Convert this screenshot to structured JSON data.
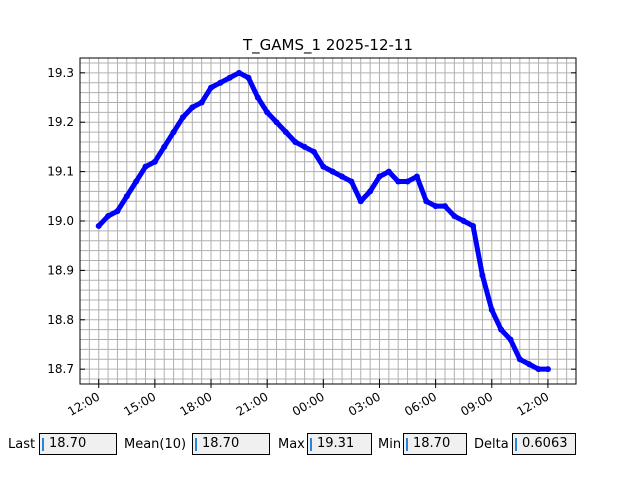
{
  "chart_data": {
    "type": "line",
    "title": "T_GAMS_1 2025-12-11",
    "xlabel": "",
    "ylabel": "",
    "x_tick_labels": [
      "12:00",
      "15:00",
      "18:00",
      "21:00",
      "00:00",
      "03:00",
      "06:00",
      "09:00",
      "12:00"
    ],
    "y_ticks": [
      18.7,
      18.8,
      18.9,
      19.0,
      19.1,
      19.2,
      19.3
    ],
    "y_tick_labels": [
      "18.7",
      "18.8",
      "18.9",
      "19.0",
      "19.1",
      "19.2",
      "19.3"
    ],
    "xlim": [
      "2025-12-10 11:00",
      "2025-12-11 13:30"
    ],
    "ylim": [
      18.67,
      19.33
    ],
    "grid": true,
    "color": "#0000ff",
    "series": [
      {
        "x": [
          "2025-12-10 12:00",
          "2025-12-10 12:30",
          "2025-12-10 13:00",
          "2025-12-10 13:30",
          "2025-12-10 14:00",
          "2025-12-10 14:30",
          "2025-12-10 15:00",
          "2025-12-10 15:30",
          "2025-12-10 16:00",
          "2025-12-10 16:30",
          "2025-12-10 17:00",
          "2025-12-10 17:30",
          "2025-12-10 18:00",
          "2025-12-10 18:30",
          "2025-12-10 19:00",
          "2025-12-10 19:30",
          "2025-12-10 20:00",
          "2025-12-10 20:30",
          "2025-12-10 21:00",
          "2025-12-10 21:30",
          "2025-12-10 22:00",
          "2025-12-10 22:30",
          "2025-12-10 23:00",
          "2025-12-10 23:30",
          "2025-12-11 00:00",
          "2025-12-11 00:30",
          "2025-12-11 01:00",
          "2025-12-11 01:30",
          "2025-12-11 02:00",
          "2025-12-11 02:30",
          "2025-12-11 03:00",
          "2025-12-11 03:30",
          "2025-12-11 04:00",
          "2025-12-11 04:30",
          "2025-12-11 05:00",
          "2025-12-11 05:30",
          "2025-12-11 06:00",
          "2025-12-11 06:30",
          "2025-12-11 07:00",
          "2025-12-11 07:30",
          "2025-12-11 08:00",
          "2025-12-11 08:30",
          "2025-12-11 09:00",
          "2025-12-11 09:30",
          "2025-12-11 10:00",
          "2025-12-11 10:30",
          "2025-12-11 11:00",
          "2025-12-11 11:30",
          "2025-12-11 12:00"
        ],
        "y": [
          18.99,
          19.01,
          19.02,
          19.05,
          19.08,
          19.11,
          19.12,
          19.15,
          19.18,
          19.21,
          19.23,
          19.24,
          19.27,
          19.28,
          19.29,
          19.3,
          19.29,
          19.25,
          19.22,
          19.2,
          19.18,
          19.16,
          19.15,
          19.14,
          19.11,
          19.1,
          19.09,
          19.08,
          19.04,
          19.06,
          19.09,
          19.1,
          19.08,
          19.08,
          19.09,
          19.04,
          19.03,
          19.03,
          19.01,
          19.0,
          18.99,
          18.89,
          18.82,
          18.78,
          18.76,
          18.72,
          18.71,
          18.7,
          18.7
        ]
      }
    ]
  },
  "stats": {
    "last_label": "Last",
    "last_value": "18.70",
    "mean_label": "Mean(10)",
    "mean_value": "18.70",
    "max_label": "Max",
    "max_value": "19.31",
    "min_label": "Min",
    "min_value": "18.70",
    "delta_label": "Delta",
    "delta_value": "0.6063"
  }
}
